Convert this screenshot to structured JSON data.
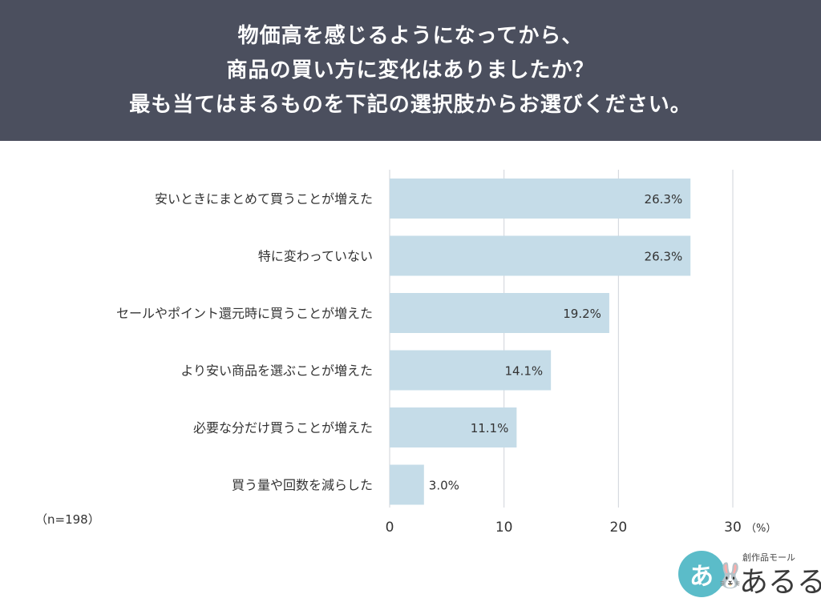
{
  "header": {
    "lines": [
      "物価高を感じるようになってから、",
      "商品の買い方に変化はありましたか？",
      "最も当てはまるものを下記の選択肢からお選びください。"
    ]
  },
  "sample_size": "（n=198）",
  "colors": {
    "header_bg": "#4b4f5e",
    "bar": "#c5dce8",
    "grid": "#cfd3da",
    "logo": "#5bbcc9"
  },
  "logo": {
    "circle_text": "あ",
    "subtitle": "創作品モール",
    "name": "あるる",
    "icon": "rabbit-icon"
  },
  "chart_data": {
    "type": "bar",
    "orientation": "horizontal",
    "categories": [
      "安いときにまとめて買うことが増えた",
      "特に変わっていない",
      "セールやポイント還元時に買うことが増えた",
      "より安い商品を選ぶことが増えた",
      "必要な分だけ買うことが増えた",
      "買う量や回数を減らした"
    ],
    "values": [
      26.3,
      26.3,
      19.2,
      14.1,
      11.1,
      3.0
    ],
    "value_labels": [
      "26.3%",
      "26.3%",
      "19.2%",
      "14.1%",
      "11.1%",
      "3.0%"
    ],
    "xlim": [
      0,
      30
    ],
    "xticks": [
      "0",
      "10",
      "20",
      "30"
    ],
    "unit": "（%）",
    "grid": true
  }
}
